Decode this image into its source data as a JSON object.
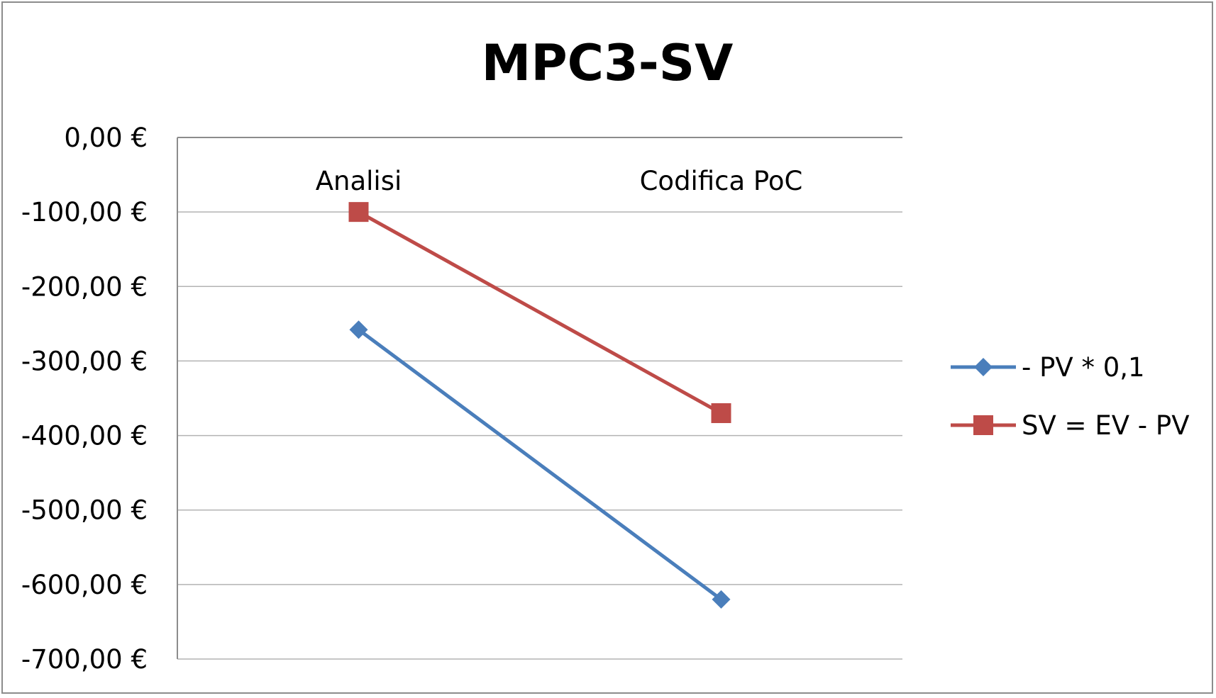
{
  "chart_data": {
    "type": "line",
    "title": "MPC3-SV",
    "xlabel": "",
    "ylabel": "",
    "categories": [
      "Analisi",
      "Codifica PoC"
    ],
    "ylim": [
      -700,
      0
    ],
    "yticks": [
      0,
      -100,
      -200,
      -300,
      -400,
      -500,
      -600,
      -700
    ],
    "ytick_labels": [
      "0,00 €",
      "-100,00 €",
      "-200,00 €",
      "-300,00 €",
      "-400,00 €",
      "-500,00 €",
      "-600,00 €",
      "-700,00 €"
    ],
    "x_axis_position": "top",
    "grid": true,
    "legend_position": "right",
    "series": [
      {
        "name": "- PV * 0,1",
        "values": [
          -258,
          -620
        ],
        "color": "#4a7ebb",
        "marker": "diamond"
      },
      {
        "name": "SV = EV - PV",
        "values": [
          -100,
          -370
        ],
        "color": "#be4b48",
        "marker": "square"
      }
    ]
  }
}
